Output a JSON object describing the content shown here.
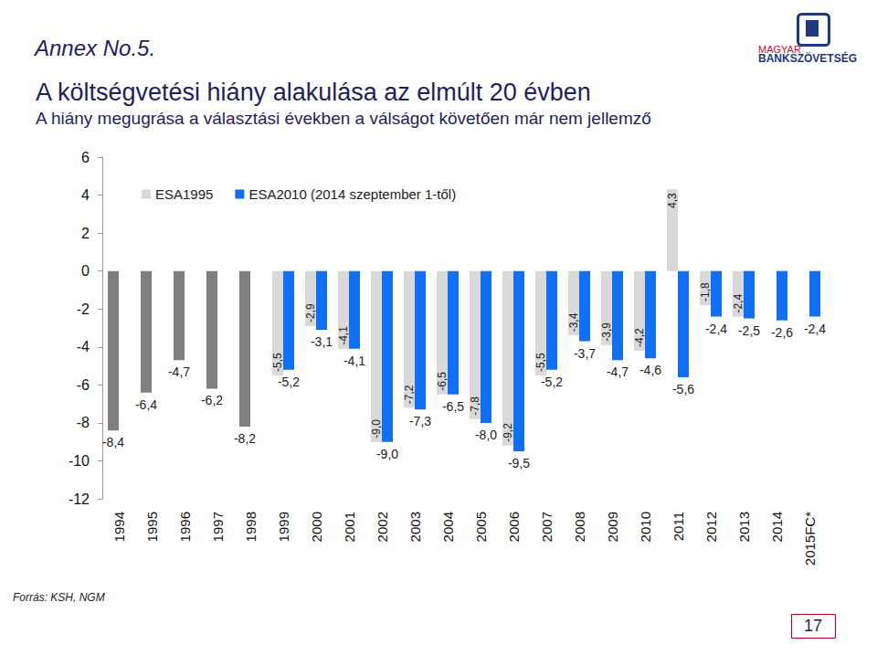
{
  "chart_data": {
    "type": "bar",
    "title": "A költségvetési hiány alakulása az elmúlt 20 évben",
    "subtitle": "A hiány megugrása a választási években a válságot követően már nem jellemző",
    "annotations": {
      "header": "Annex No.5.",
      "source": "Forrás: KSH, NGM",
      "page": "17",
      "logo": [
        "MAGYAR",
        "BANKSZÖVETSÉG"
      ]
    },
    "categories": [
      "1994",
      "1995",
      "1996",
      "1997",
      "1998",
      "1999",
      "2000",
      "2001",
      "2002",
      "2003",
      "2004",
      "2005",
      "2006",
      "2007",
      "2008",
      "2009",
      "2010",
      "2011",
      "2012",
      "2013",
      "2014",
      "2015FC*"
    ],
    "series": [
      {
        "name": "ESA1995",
        "colors": [
          "#7f7f7f",
          "#7f7f7f",
          "#7f7f7f",
          "#7f7f7f",
          "#7f7f7f",
          "#d9d9d9",
          "#d9d9d9",
          "#d9d9d9",
          "#d9d9d9",
          "#d9d9d9",
          "#d9d9d9",
          "#d9d9d9",
          "#d9d9d9",
          "#d9d9d9",
          "#d9d9d9",
          "#d9d9d9",
          "#d9d9d9",
          "#d9d9d9",
          "#d9d9d9",
          "#d9d9d9",
          null,
          null
        ],
        "values": [
          -8.4,
          -6.4,
          -4.7,
          -6.2,
          -8.2,
          -5.5,
          -2.9,
          -4.1,
          -9.0,
          -7.2,
          -6.5,
          -7.8,
          -9.2,
          -5.5,
          -3.4,
          -3.9,
          -4.2,
          4.3,
          -1.8,
          -2.4,
          null,
          null
        ],
        "value_labels": [
          "-8,4",
          "-6,4",
          "-4,7",
          "-6,2",
          "-8,2",
          "-5,5",
          "-2,9",
          "-4,1",
          "-9,0",
          "-7,2",
          "-6,5",
          "-7,8",
          "-9,2",
          "-5,5",
          "-3,4",
          "-3,9",
          "-4,2",
          "4,3",
          "-1,8",
          "-2,4",
          null,
          null
        ]
      },
      {
        "name": "ESA2010 (2014 szeptember 1-től)",
        "color": "#1170f2",
        "values": [
          null,
          null,
          null,
          null,
          null,
          -5.2,
          -3.1,
          -4.1,
          -9.0,
          -7.3,
          -6.5,
          -8.0,
          -9.5,
          -5.2,
          -3.7,
          -4.7,
          -4.6,
          -5.6,
          -2.4,
          -2.5,
          -2.6,
          -2.4
        ],
        "value_labels": [
          null,
          null,
          null,
          null,
          null,
          "-5,2",
          "-3,1",
          "-4,1",
          "-9,0",
          "-7,3",
          "-6,5",
          "-8,0",
          "-9,5",
          "-5,2",
          "-3,7",
          "-4,7",
          "-4,6",
          "-5,6",
          "-2,4",
          "-2,5",
          "-2,6",
          "-2,4"
        ]
      }
    ],
    "ylim": [
      -12,
      6
    ],
    "yticks": [
      -12,
      -10,
      -8,
      -6,
      -4,
      -2,
      0,
      2,
      4,
      6
    ],
    "grid": false,
    "legend": "upper left",
    "data_labels": true
  }
}
